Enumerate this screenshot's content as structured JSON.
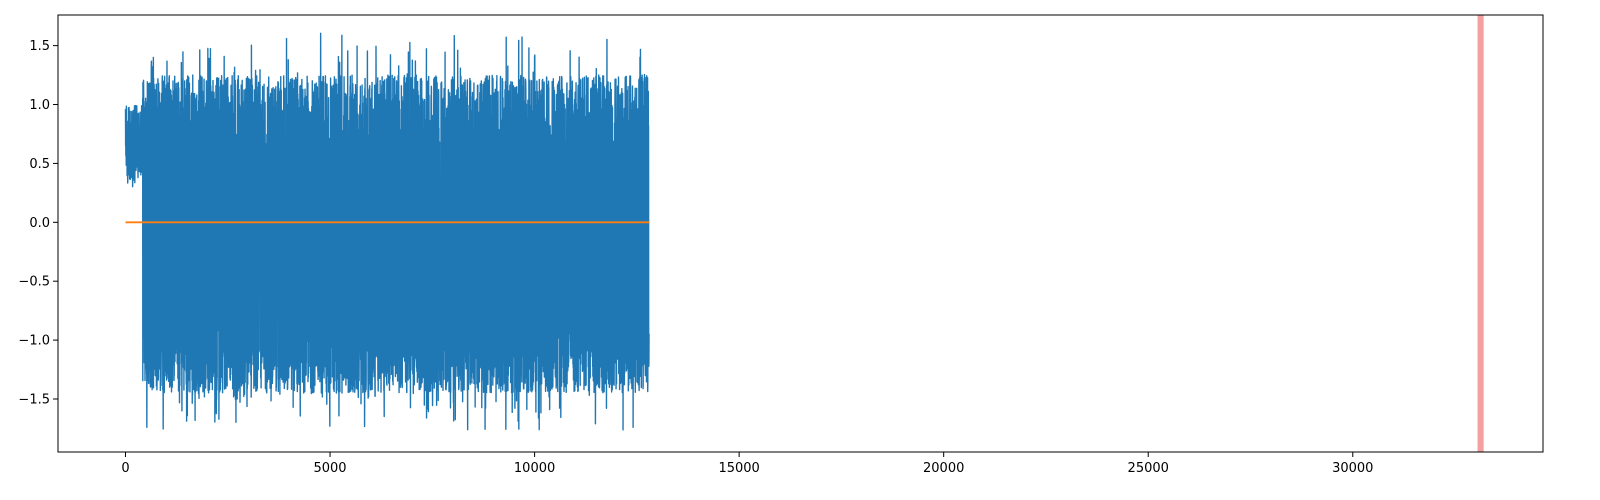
{
  "chart_data": {
    "type": "line",
    "title": "",
    "xlabel": "",
    "ylabel": "",
    "xlim": [
      -1650,
      34650
    ],
    "ylim": [
      -1.95,
      1.76
    ],
    "x_ticks": [
      0,
      5000,
      10000,
      15000,
      20000,
      25000,
      30000
    ],
    "x_tick_labels": [
      "0",
      "5000",
      "10000",
      "15000",
      "20000",
      "25000",
      "30000"
    ],
    "y_ticks": [
      -1.5,
      -1.0,
      -0.5,
      0.0,
      0.5,
      1.0,
      1.5
    ],
    "y_tick_labels": [
      "−1.5",
      "−1.0",
      "−0.5",
      "0.0",
      "0.5",
      "1.0",
      "1.5"
    ],
    "grid": false,
    "legend": "none",
    "series": [
      {
        "color": "#1f77b4",
        "x_range": [
          0,
          12800
        ],
        "description_values": {
          "initial_segment": {
            "x": [
              0,
              420
            ],
            "y_range": [
              0.3,
              1.0
            ]
          },
          "oscillating_segment": {
            "x": [
              420,
              12800
            ],
            "y_min": -1.77,
            "y_max": 1.61,
            "typical_low": -1.45,
            "typical_high": 1.25
          }
        }
      },
      {
        "color": "#ff7f0e",
        "x": [
          0,
          12800
        ],
        "y": [
          0.0,
          0.0
        ]
      }
    ],
    "highlight_spans": [
      {
        "x": [
          33050,
          33200
        ],
        "color": "#f08080"
      }
    ]
  }
}
